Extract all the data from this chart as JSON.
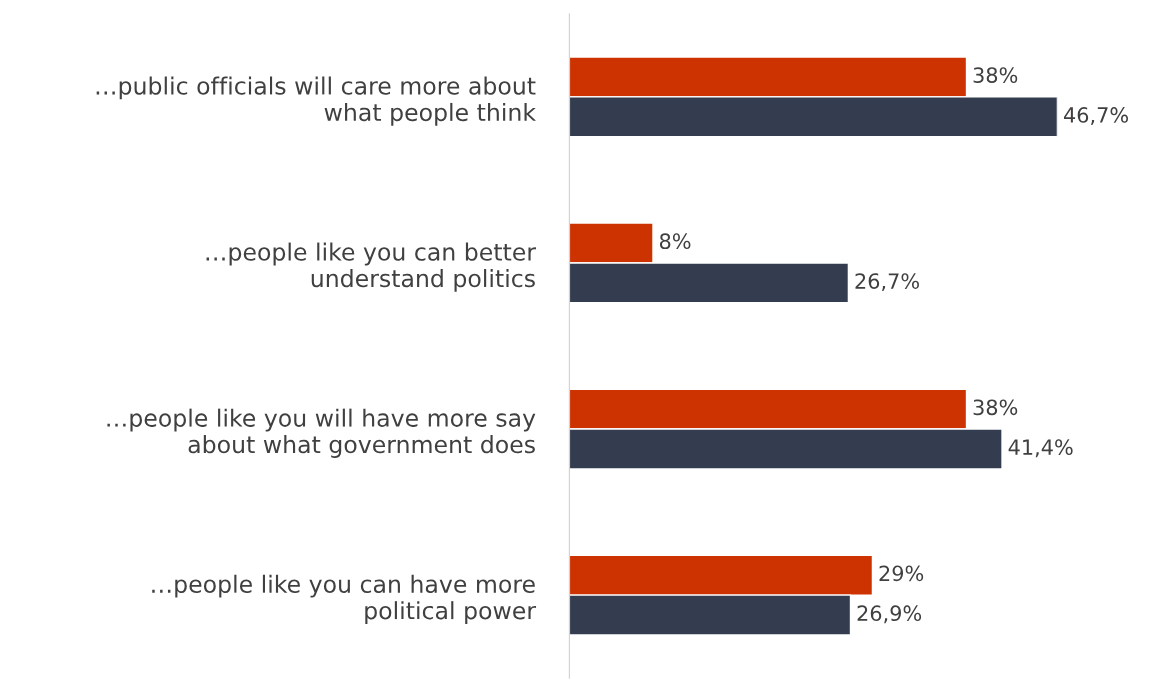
{
  "chart_data": {
    "type": "bar",
    "orientation": "horizontal",
    "categories": [
      "…public officials will care more about\nwhat people think",
      "…people like you can better\nunderstand politics",
      "…people like you will have more say\nabout what government does",
      "…people like you can have more\npolitical power"
    ],
    "series": [
      {
        "color": "#cc3300",
        "values": [
          38,
          8,
          38,
          29
        ],
        "value_labels": [
          "38%",
          "8%",
          "38%",
          "29%"
        ]
      },
      {
        "color": "#333d4f",
        "values": [
          46.7,
          26.7,
          41.4,
          26.9
        ],
        "value_labels": [
          "46,7%",
          "26,7%",
          "41,4%",
          "26,9%"
        ]
      }
    ],
    "grid": false,
    "legend": false,
    "tick_labels": "y"
  }
}
